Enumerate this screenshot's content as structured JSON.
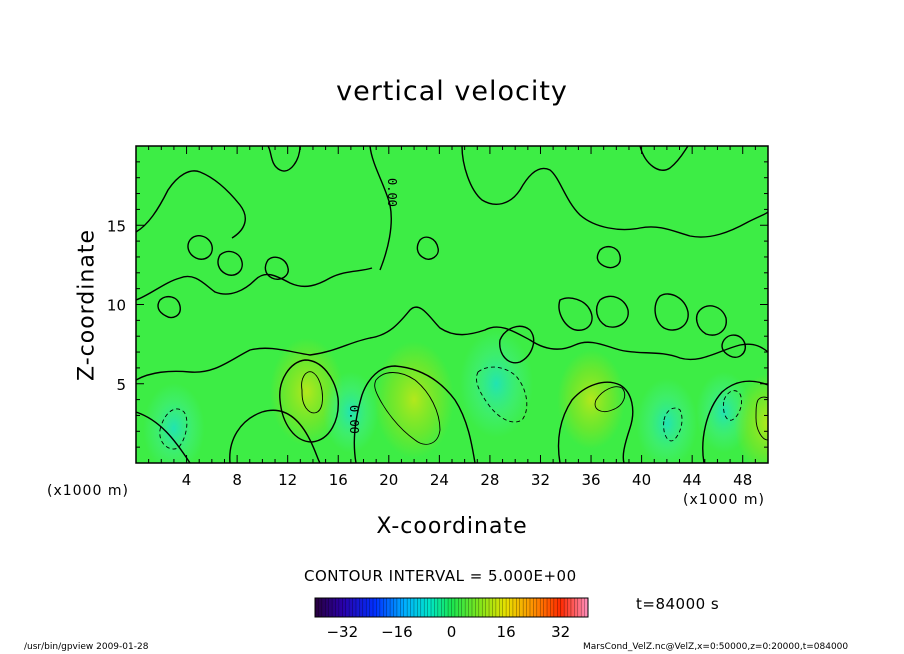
{
  "chart_data": {
    "type": "heatmap",
    "title": "vertical velocity",
    "xlabel": "X-coordinate",
    "ylabel": "Z-coordinate",
    "x_unit": "(x1000 m)",
    "z_unit": "(x1000 m)",
    "xlim": [
      0,
      50
    ],
    "ylim": [
      0,
      20
    ],
    "x_ticks": [
      4,
      8,
      12,
      16,
      20,
      24,
      28,
      32,
      36,
      40,
      44,
      48
    ],
    "y_ticks": [
      5,
      10,
      15
    ],
    "contour_label": "0.00",
    "contour_interval": "CONTOUR INTERVAL = 5.000E+00",
    "colorbar": {
      "ticks": [
        -32,
        -16,
        0,
        16,
        32
      ],
      "range": [
        -40,
        40
      ],
      "colormap": "rainbow"
    },
    "time_label": "t=84000 s",
    "field_features": [
      {
        "x": 3,
        "z": 2.2,
        "value": -4,
        "kind": "downdraft"
      },
      {
        "x": 13.5,
        "z": 4.5,
        "value": 6,
        "kind": "updraft"
      },
      {
        "x": 17,
        "z": 3.2,
        "value": -3,
        "kind": "downdraft"
      },
      {
        "x": 22,
        "z": 4,
        "value": 7,
        "kind": "updraft"
      },
      {
        "x": 28.5,
        "z": 5,
        "value": -6,
        "kind": "downdraft"
      },
      {
        "x": 36,
        "z": 4,
        "value": 5,
        "kind": "updraft"
      },
      {
        "x": 42,
        "z": 2.5,
        "value": -4,
        "kind": "downdraft"
      },
      {
        "x": 46.5,
        "z": 3.2,
        "value": -3,
        "kind": "downdraft"
      },
      {
        "x": 50,
        "z": 2.5,
        "value": 5,
        "kind": "updraft"
      }
    ]
  },
  "footer": {
    "left": "/usr/bin/gpview  2009-01-28",
    "right": "MarsCond_VelZ.nc@VelZ,x=0:50000,z=0:20000,t=084000"
  }
}
